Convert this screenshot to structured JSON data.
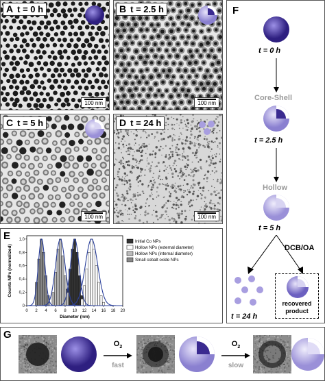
{
  "panels": {
    "A": {
      "letter": "A",
      "time": "t = 0 h",
      "scale": "100 nm"
    },
    "B": {
      "letter": "B",
      "time": "t = 2.5 h",
      "scale": "100 nm"
    },
    "C": {
      "letter": "C",
      "time": "t = 5 h",
      "scale": "100 nm"
    },
    "D": {
      "letter": "D",
      "time": "t = 24 h",
      "scale": "100 nm"
    },
    "E": {
      "letter": "E"
    },
    "F": {
      "letter": "F"
    },
    "G": {
      "letter": "G"
    }
  },
  "schematic": {
    "t0": "t = 0 h",
    "core_shell_label": "Core-Shell",
    "t25": "t = 2.5 h",
    "hollow_label": "Hollow",
    "t5": "t = 5 h",
    "solvent": "DCB/OA",
    "t24": "t = 24 h",
    "recovered_line1": "recovered",
    "recovered_line2": "product"
  },
  "process": {
    "o2_first": "O",
    "o2_sub": "2",
    "fast": "fast",
    "slow": "slow"
  },
  "colors": {
    "sphere": "#4a3aa0",
    "sphere_light": "#8a80d0",
    "gray_label": "#9a9a9a"
  },
  "chart_data": {
    "type": "bar",
    "ylabel": "Counts NPs (normalized)",
    "xlabel": "Diameter (nm)",
    "xlim": [
      0,
      20
    ],
    "ylim": [
      0,
      1.05
    ],
    "xticks": [
      "0",
      "2",
      "4",
      "6",
      "8",
      "10",
      "12",
      "14",
      "16",
      "18",
      "20"
    ],
    "yticks": [
      "0",
      "0,2",
      "0,4",
      "0,6",
      "0,8",
      "1,0"
    ],
    "legend": [
      "Initial Co NPs",
      "Hollow NPs (external diameter)",
      "Hollow NPs (internal diameter)",
      "Small cobalt oxide NPs"
    ],
    "series": [
      {
        "name": "Initial Co NPs",
        "color": "#333333",
        "x": [
          8.5,
          9.0,
          9.5,
          10.0,
          10.5,
          11.0,
          11.5
        ],
        "values": [
          0.25,
          0.55,
          0.85,
          1.0,
          0.8,
          0.45,
          0.15
        ],
        "fit_center": 10.0,
        "fit_sigma": 0.9
      },
      {
        "name": "Hollow NPs (external diameter)",
        "color": "#ffffff",
        "x": [
          11.5,
          12.0,
          12.5,
          13.0,
          13.5,
          14.0,
          14.5,
          15.0,
          15.5,
          16.0
        ],
        "values": [
          0.1,
          0.3,
          0.55,
          0.8,
          1.0,
          0.85,
          0.6,
          0.35,
          0.15,
          0.05
        ],
        "fit_center": 13.5,
        "fit_sigma": 1.3
      },
      {
        "name": "Hollow NPs (internal diameter)",
        "color": "#bbbbbb",
        "x": [
          5.5,
          6.0,
          6.5,
          7.0,
          7.5,
          8.0,
          8.5
        ],
        "values": [
          0.2,
          0.5,
          0.85,
          1.0,
          0.75,
          0.45,
          0.2
        ],
        "fit_center": 7.0,
        "fit_sigma": 1.0
      },
      {
        "name": "Small cobalt oxide NPs",
        "color": "#888888",
        "x": [
          2.0,
          2.5,
          3.0,
          3.5,
          4.0,
          4.5
        ],
        "values": [
          0.35,
          0.7,
          1.0,
          0.8,
          0.45,
          0.15
        ],
        "fit_center": 3.1,
        "fit_sigma": 0.7
      }
    ]
  }
}
